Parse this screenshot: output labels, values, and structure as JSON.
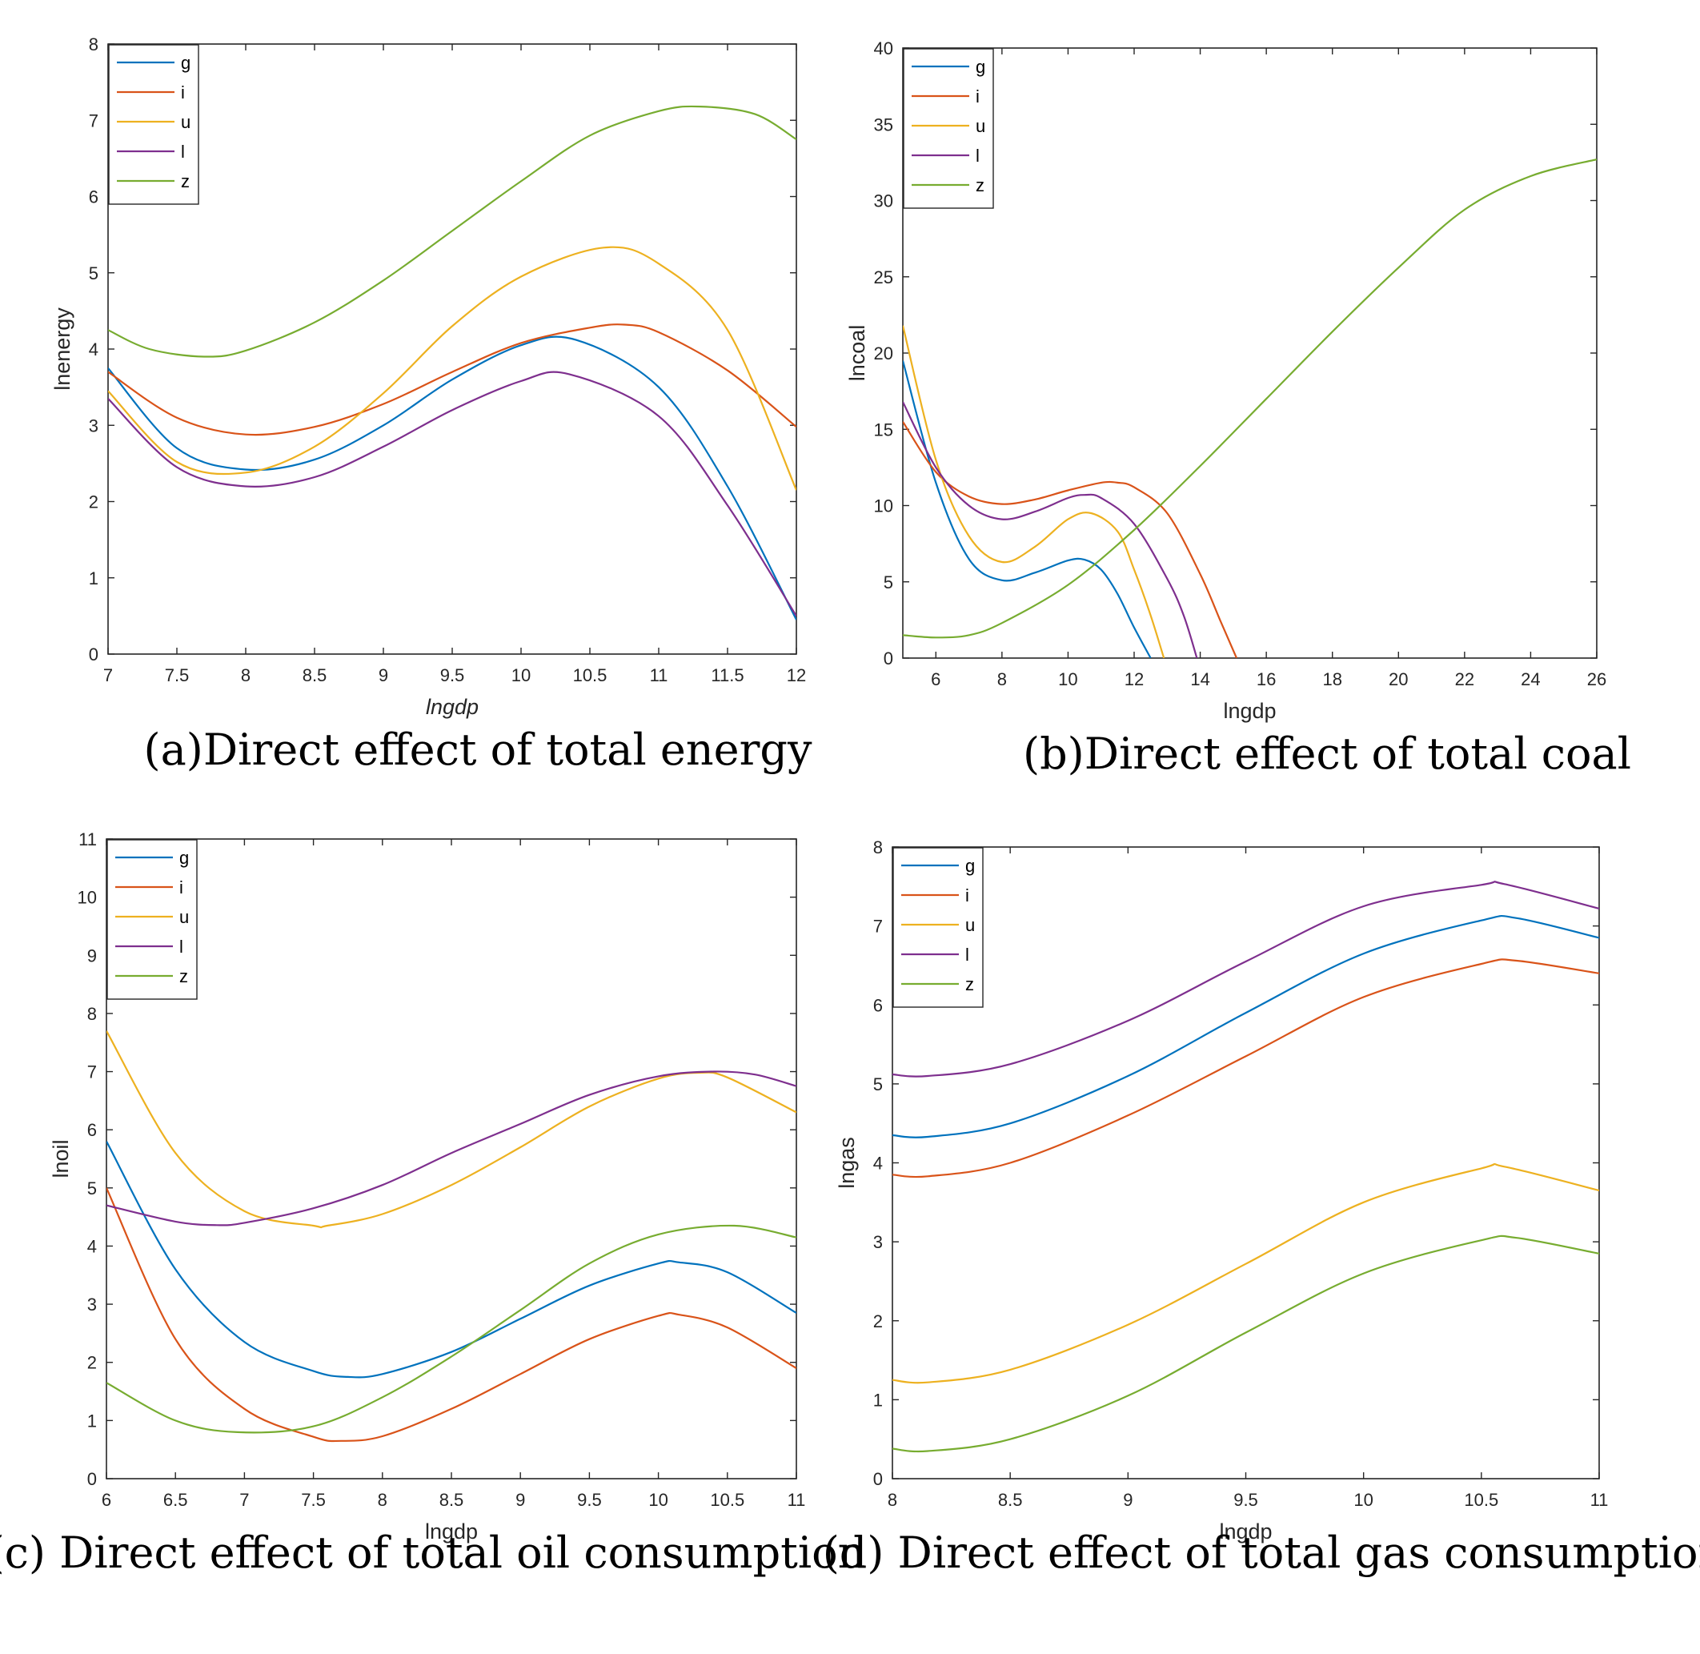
{
  "colors": [
    "#0072BD",
    "#D95319",
    "#EDB120",
    "#7E2F8E",
    "#77AC30"
  ],
  "chart_data": [
    {
      "type": "line",
      "caption": "(a)Direct effect of total energy",
      "xlabel": "lngdp",
      "ylabel": "lnenergy",
      "xlim": [
        7,
        12
      ],
      "ylim": [
        0,
        8
      ],
      "xticks": [
        7,
        7.5,
        8,
        8.5,
        9,
        9.5,
        10,
        10.5,
        11,
        11.5,
        12
      ],
      "yticks": [
        0,
        1,
        2,
        3,
        4,
        5,
        6,
        7,
        8
      ],
      "legend": "top-left",
      "series": [
        {
          "name": "g",
          "x": [
            7,
            7.5,
            8,
            8.5,
            9,
            9.5,
            10,
            10.4,
            11,
            11.5,
            12
          ],
          "y": [
            3.75,
            2.7,
            2.42,
            2.55,
            3.0,
            3.6,
            4.05,
            4.12,
            3.5,
            2.2,
            0.45
          ]
        },
        {
          "name": "i",
          "x": [
            7,
            7.5,
            8,
            8.5,
            9,
            9.5,
            10,
            10.5,
            10.75,
            11,
            11.5,
            12
          ],
          "y": [
            3.7,
            3.1,
            2.88,
            2.98,
            3.28,
            3.7,
            4.08,
            4.28,
            4.32,
            4.22,
            3.72,
            2.98
          ]
        },
        {
          "name": "u",
          "x": [
            7,
            7.5,
            8,
            8.5,
            9,
            9.5,
            10,
            10.6,
            11,
            11.5,
            12
          ],
          "y": [
            3.45,
            2.52,
            2.38,
            2.72,
            3.42,
            4.3,
            4.95,
            5.33,
            5.12,
            4.25,
            2.15
          ]
        },
        {
          "name": "l",
          "x": [
            7,
            7.5,
            8,
            8.5,
            9,
            9.5,
            10,
            10.35,
            11,
            11.5,
            12
          ],
          "y": [
            3.35,
            2.45,
            2.2,
            2.32,
            2.72,
            3.2,
            3.58,
            3.67,
            3.12,
            1.95,
            0.5
          ]
        },
        {
          "name": "z",
          "x": [
            7,
            7.3,
            7.7,
            8,
            8.5,
            9,
            9.5,
            10,
            10.5,
            11,
            11.3,
            11.7,
            12
          ],
          "y": [
            4.25,
            4.0,
            3.9,
            3.98,
            4.35,
            4.9,
            5.55,
            6.2,
            6.8,
            7.12,
            7.18,
            7.08,
            6.75
          ]
        }
      ]
    },
    {
      "type": "line",
      "caption": "(b)Direct effect of total coal",
      "xlabel": "lngdp",
      "ylabel": "lncoal",
      "xlim": [
        5,
        26
      ],
      "ylim": [
        0,
        40
      ],
      "xticks": [
        6,
        8,
        10,
        12,
        14,
        16,
        18,
        20,
        22,
        24,
        26
      ],
      "yticks": [
        0,
        5,
        10,
        15,
        20,
        25,
        30,
        35,
        40
      ],
      "legend": "top-left",
      "series": [
        {
          "name": "g",
          "x": [
            5,
            6,
            7,
            8,
            9,
            10,
            10.5,
            11,
            11.5,
            12,
            12.5
          ],
          "y": [
            19.5,
            11.5,
            6.5,
            5.1,
            5.6,
            6.4,
            6.45,
            5.8,
            4.2,
            2.0,
            0
          ]
        },
        {
          "name": "i",
          "x": [
            5,
            6,
            7,
            8,
            9,
            10,
            11,
            11.5,
            12,
            13,
            14,
            14.6,
            15.1
          ],
          "y": [
            15.5,
            12.2,
            10.6,
            10.1,
            10.4,
            11.0,
            11.5,
            11.5,
            11.2,
            9.5,
            5.5,
            2.5,
            0
          ]
        },
        {
          "name": "u",
          "x": [
            5,
            6,
            7,
            8,
            9,
            10,
            10.7,
            11.5,
            12,
            12.5,
            12.9
          ],
          "y": [
            21.8,
            13.0,
            8.0,
            6.3,
            7.3,
            9.1,
            9.5,
            8.3,
            5.8,
            2.8,
            0
          ]
        },
        {
          "name": "l",
          "x": [
            5,
            6,
            7,
            8,
            9,
            10,
            10.5,
            11,
            12,
            13,
            13.5,
            13.9
          ],
          "y": [
            16.8,
            12.5,
            10.0,
            9.1,
            9.6,
            10.5,
            10.7,
            10.5,
            8.8,
            5.2,
            2.8,
            0
          ]
        },
        {
          "name": "z",
          "x": [
            5,
            6,
            7,
            8,
            10,
            12,
            14,
            16,
            18,
            20,
            22,
            24,
            26
          ],
          "y": [
            1.5,
            1.35,
            1.5,
            2.3,
            4.8,
            8.4,
            12.6,
            17.0,
            21.4,
            25.6,
            29.4,
            31.6,
            32.7
          ]
        }
      ]
    },
    {
      "type": "line",
      "caption": "(c) Direct effect of total oil consumption",
      "xlabel": "lngdp",
      "ylabel": "lnoil",
      "xlim": [
        6,
        11
      ],
      "ylim": [
        0,
        11
      ],
      "xticks": [
        6,
        6.5,
        7,
        7.5,
        8,
        8.5,
        9,
        9.5,
        10,
        10.5,
        11
      ],
      "yticks": [
        0,
        1,
        2,
        3,
        4,
        5,
        6,
        7,
        8,
        9,
        10,
        11
      ],
      "legend": "top-left",
      "series": [
        {
          "name": "g",
          "x": [
            6,
            6.5,
            7,
            7.5,
            7.75,
            8,
            8.5,
            9,
            9.5,
            10,
            10.15,
            10.5,
            11
          ],
          "y": [
            5.8,
            3.6,
            2.35,
            1.85,
            1.75,
            1.8,
            2.18,
            2.75,
            3.32,
            3.7,
            3.72,
            3.55,
            2.85
          ]
        },
        {
          "name": "i",
          "x": [
            6,
            6.5,
            7,
            7.5,
            7.7,
            8,
            8.5,
            9,
            9.5,
            10,
            10.15,
            10.5,
            11
          ],
          "y": [
            5.0,
            2.4,
            1.2,
            0.72,
            0.65,
            0.73,
            1.2,
            1.8,
            2.4,
            2.8,
            2.82,
            2.6,
            1.9
          ]
        },
        {
          "name": "u",
          "x": [
            6,
            6.5,
            7,
            7.5,
            7.6,
            8,
            8.5,
            9,
            9.5,
            10,
            10.3,
            10.5,
            11
          ],
          "y": [
            7.7,
            5.6,
            4.6,
            4.35,
            4.35,
            4.55,
            5.05,
            5.7,
            6.4,
            6.88,
            6.98,
            6.9,
            6.3
          ]
        },
        {
          "name": "l",
          "x": [
            6,
            6.5,
            6.8,
            7,
            7.5,
            8,
            8.5,
            9,
            9.5,
            10,
            10.4,
            10.7,
            11
          ],
          "y": [
            4.7,
            4.42,
            4.36,
            4.4,
            4.65,
            5.05,
            5.6,
            6.1,
            6.6,
            6.92,
            7.0,
            6.95,
            6.75
          ]
        },
        {
          "name": "z",
          "x": [
            6,
            6.5,
            6.95,
            7.5,
            8,
            8.5,
            9,
            9.5,
            10,
            10.55,
            11
          ],
          "y": [
            1.65,
            1.0,
            0.8,
            0.9,
            1.4,
            2.1,
            2.9,
            3.7,
            4.2,
            4.35,
            4.15
          ]
        }
      ]
    },
    {
      "type": "line",
      "caption": "(d) Direct effect of total gas consumption",
      "xlabel": "lngdp",
      "ylabel": "lngas",
      "xlim": [
        8,
        11
      ],
      "ylim": [
        0,
        8
      ],
      "xticks": [
        8,
        8.5,
        9,
        9.5,
        10,
        10.5,
        11
      ],
      "yticks": [
        0,
        1,
        2,
        3,
        4,
        5,
        6,
        7,
        8
      ],
      "legend": "top-left",
      "series": [
        {
          "name": "g",
          "x": [
            8,
            8.15,
            8.5,
            9,
            9.5,
            10,
            10.5,
            10.65,
            11
          ],
          "y": [
            4.35,
            4.33,
            4.5,
            5.1,
            5.9,
            6.65,
            7.07,
            7.1,
            6.85
          ]
        },
        {
          "name": "i",
          "x": [
            8,
            8.15,
            8.5,
            9,
            9.5,
            10,
            10.5,
            10.65,
            11
          ],
          "y": [
            3.85,
            3.83,
            4.0,
            4.6,
            5.35,
            6.1,
            6.52,
            6.56,
            6.4
          ]
        },
        {
          "name": "u",
          "x": [
            8,
            8.15,
            8.5,
            9,
            9.5,
            10,
            10.5,
            10.6,
            11
          ],
          "y": [
            1.25,
            1.22,
            1.38,
            1.95,
            2.72,
            3.5,
            3.93,
            3.95,
            3.65
          ]
        },
        {
          "name": "l",
          "x": [
            8,
            8.15,
            8.5,
            9,
            9.5,
            10,
            10.5,
            10.6,
            11
          ],
          "y": [
            5.12,
            5.1,
            5.25,
            5.8,
            6.55,
            7.25,
            7.52,
            7.53,
            7.22
          ]
        },
        {
          "name": "z",
          "x": [
            8,
            8.15,
            8.5,
            9,
            9.5,
            10,
            10.5,
            10.65,
            11
          ],
          "y": [
            0.38,
            0.35,
            0.5,
            1.05,
            1.85,
            2.6,
            3.02,
            3.05,
            2.85
          ]
        }
      ]
    }
  ]
}
